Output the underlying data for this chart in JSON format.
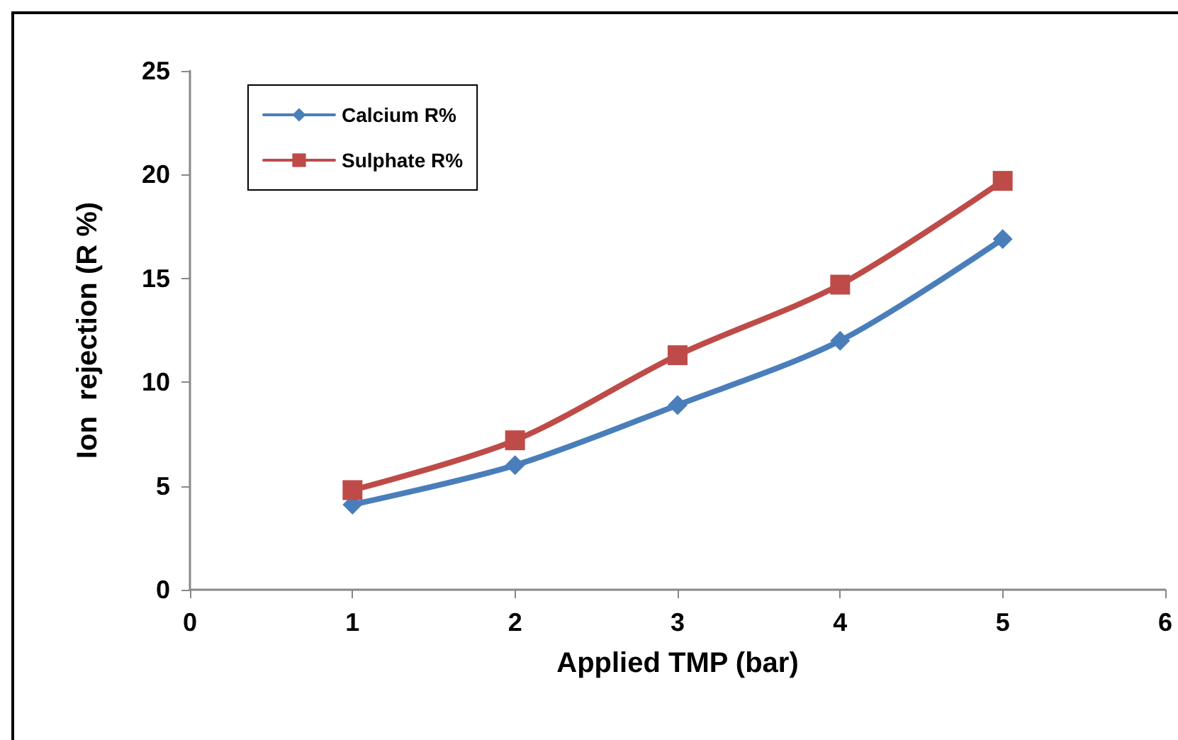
{
  "chart_data": {
    "type": "line",
    "xlabel": "Applied TMP (bar)",
    "ylabel": "Ion  rejection (R %)",
    "x": [
      1,
      2,
      3,
      4,
      5
    ],
    "series": [
      {
        "name": "Calcium R%",
        "color": "#4a7ebb",
        "values": [
          4.1,
          6.0,
          8.9,
          12.0,
          16.9
        ],
        "marker": "diamond"
      },
      {
        "name": "Sulphate R%",
        "color": "#be4b48",
        "values": [
          4.8,
          7.2,
          11.3,
          14.7,
          19.7
        ],
        "marker": "square"
      }
    ],
    "xlim": [
      0,
      6
    ],
    "xticks": [
      0,
      1,
      2,
      3,
      4,
      5,
      6
    ],
    "ylim": [
      0,
      25
    ],
    "yticks": [
      0,
      5,
      10,
      15,
      20,
      25
    ],
    "grid": false,
    "legend": "top left",
    "line_style": "solid"
  }
}
